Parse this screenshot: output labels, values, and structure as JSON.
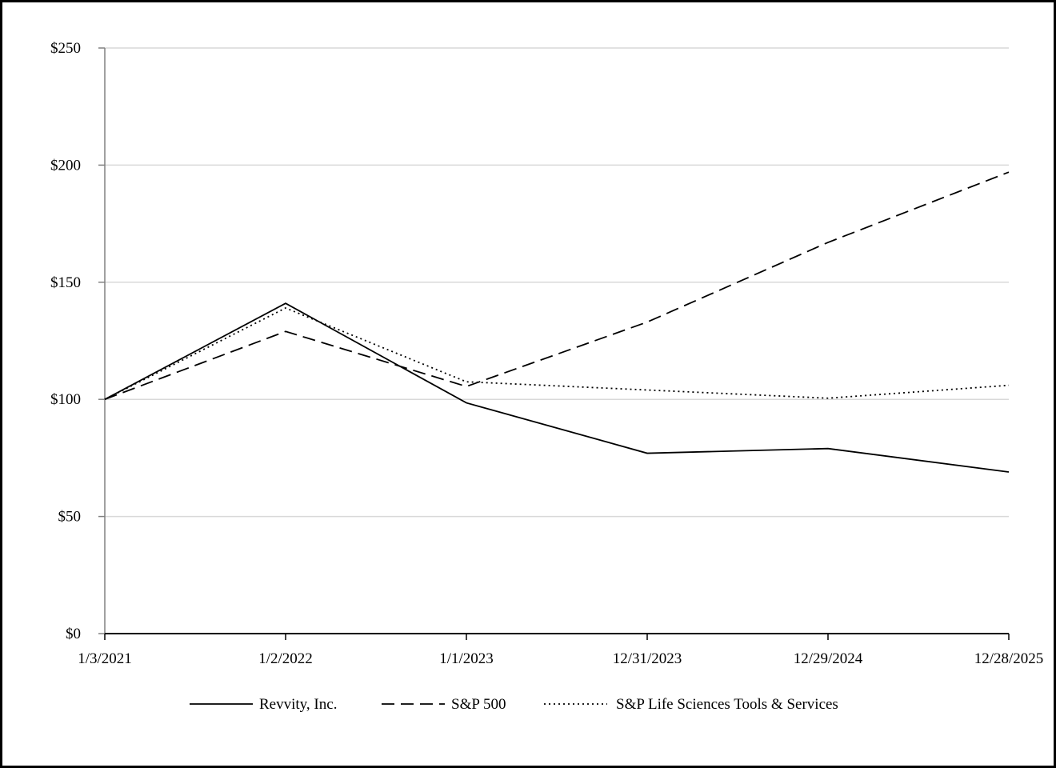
{
  "chart_data": {
    "type": "line",
    "title": "",
    "xlabel": "",
    "ylabel": "",
    "categories": [
      "1/3/2021",
      "1/2/2022",
      "1/1/2023",
      "12/31/2023",
      "12/29/2024",
      "12/28/2025"
    ],
    "ylim": [
      0,
      250
    ],
    "yticks": [
      0,
      50,
      100,
      150,
      200,
      250
    ],
    "ytick_labels": [
      "$0",
      "$50",
      "$100",
      "$150",
      "$200",
      "$250"
    ],
    "grid": "horizontal",
    "legend_position": "bottom",
    "series": [
      {
        "name": "Revvity, Inc.",
        "style": "solid",
        "values": [
          100,
          141,
          98.5,
          77,
          79,
          69
        ]
      },
      {
        "name": "S&P 500",
        "style": "dashed",
        "values": [
          100,
          129,
          105.5,
          133,
          167,
          197
        ]
      },
      {
        "name": "S&P Life Sciences Tools & Services",
        "style": "dotted",
        "values": [
          100,
          139,
          107.5,
          104,
          100.5,
          106
        ]
      }
    ]
  }
}
